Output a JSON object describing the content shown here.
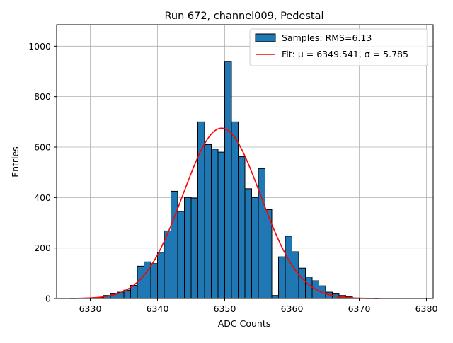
{
  "chart_data": {
    "type": "bar",
    "title": "Run 672, channel009, Pedestal",
    "xlabel": "ADC Counts",
    "ylabel": "Entries",
    "xlim": [
      6325,
      6381
    ],
    "ylim": [
      0,
      1085
    ],
    "xticks": [
      6330,
      6340,
      6350,
      6360,
      6370,
      6380
    ],
    "yticks": [
      0,
      200,
      400,
      600,
      800,
      1000
    ],
    "grid": true,
    "legend_position": "upper-right",
    "bin_width": 1,
    "bins_start": [
      6331,
      6332,
      6333,
      6334,
      6335,
      6336,
      6337,
      6338,
      6339,
      6340,
      6341,
      6342,
      6343,
      6344,
      6345,
      6346,
      6347,
      6348,
      6349,
      6350,
      6351,
      6352,
      6353,
      6354,
      6355,
      6356,
      6357,
      6358,
      6359,
      6360,
      6361,
      6362,
      6363,
      6364,
      6365,
      6366,
      6367,
      6368
    ],
    "counts": [
      3,
      12,
      18,
      25,
      33,
      52,
      128,
      145,
      138,
      183,
      268,
      425,
      345,
      400,
      398,
      700,
      610,
      592,
      580,
      940,
      700,
      562,
      435,
      400,
      515,
      352,
      12,
      165,
      247,
      185,
      120,
      85,
      70,
      50,
      25,
      18,
      12,
      8
    ],
    "series": [
      {
        "name": "Samples: RMS=6.13",
        "kind": "histogram",
        "color": "#1f77b4"
      },
      {
        "name": "Fit: μ = 6349.541, σ = 5.785",
        "kind": "gaussian-fit",
        "color": "#ff0000",
        "mu": 6349.541,
        "sigma": 5.785,
        "amplitude": 675,
        "x_range": [
          6327,
          6373
        ]
      }
    ]
  }
}
